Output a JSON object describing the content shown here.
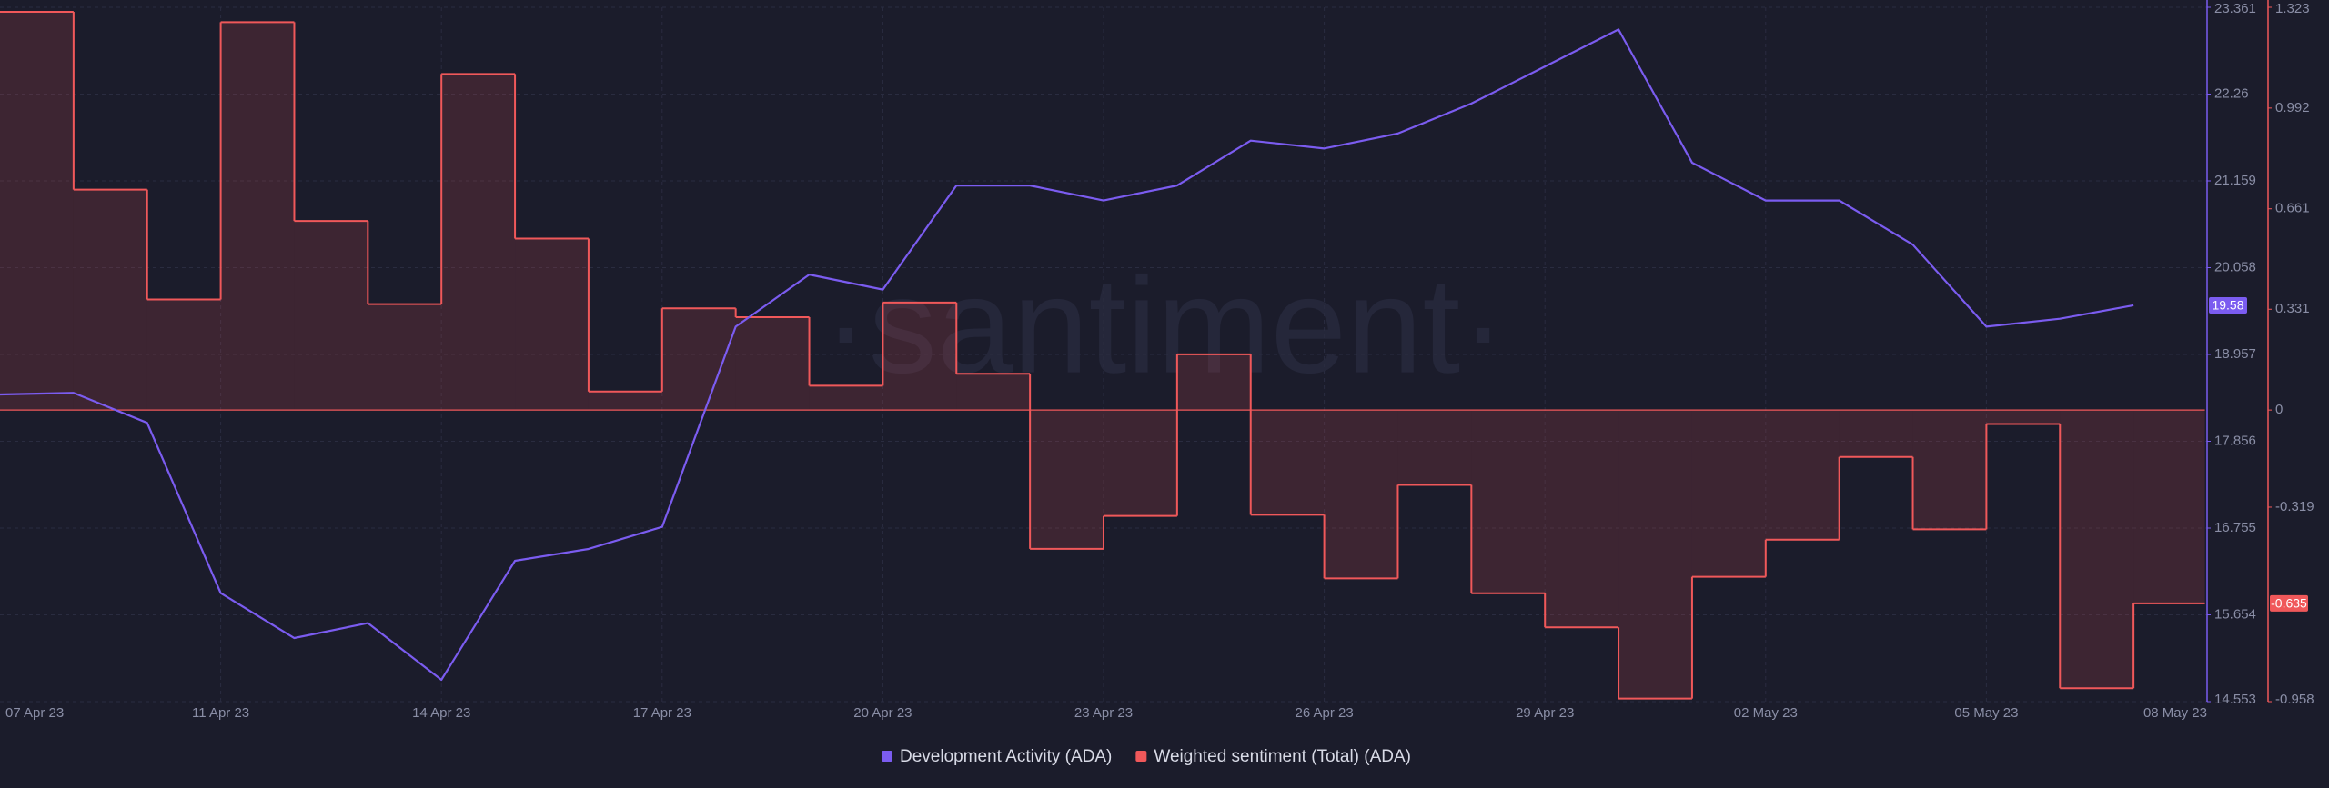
{
  "chart_data": {
    "type": "line",
    "watermark": "·santiment·",
    "x": [
      "2023-04-08",
      "2023-04-09",
      "2023-04-10",
      "2023-04-11",
      "2023-04-12",
      "2023-04-13",
      "2023-04-14",
      "2023-04-15",
      "2023-04-16",
      "2023-04-17",
      "2023-04-18",
      "2023-04-19",
      "2023-04-20",
      "2023-04-21",
      "2023-04-22",
      "2023-04-23",
      "2023-04-24",
      "2023-04-25",
      "2023-04-26",
      "2023-04-27",
      "2023-04-28",
      "2023-04-29",
      "2023-04-30",
      "2023-05-01",
      "2023-05-02",
      "2023-05-03",
      "2023-05-04",
      "2023-05-05",
      "2023-05-06",
      "2023-05-07"
    ],
    "xlim": [
      "2023-04-08",
      "2023-05-08"
    ],
    "xticks": [
      {
        "value": "2023-04-07",
        "label": "07 Apr 23"
      },
      {
        "value": "2023-04-11",
        "label": "11 Apr 23"
      },
      {
        "value": "2023-04-14",
        "label": "14 Apr 23"
      },
      {
        "value": "2023-04-17",
        "label": "17 Apr 23"
      },
      {
        "value": "2023-04-20",
        "label": "20 Apr 23"
      },
      {
        "value": "2023-04-23",
        "label": "23 Apr 23"
      },
      {
        "value": "2023-04-26",
        "label": "26 Apr 23"
      },
      {
        "value": "2023-04-29",
        "label": "29 Apr 23"
      },
      {
        "value": "2023-05-02",
        "label": "02 May 23"
      },
      {
        "value": "2023-05-05",
        "label": "05 May 23"
      },
      {
        "value": "2023-05-08",
        "label": "08 May 23"
      }
    ],
    "series": [
      {
        "name": "Development Activity (ADA)",
        "color": "#7b5cf0",
        "axis": "y",
        "values": [
          18.45,
          18.47,
          18.09,
          15.93,
          15.36,
          15.55,
          14.83,
          16.34,
          16.49,
          16.77,
          19.31,
          19.97,
          19.78,
          21.1,
          21.1,
          20.91,
          21.1,
          21.67,
          21.57,
          21.76,
          22.14,
          22.61,
          23.08,
          21.39,
          20.91,
          20.91,
          20.35,
          19.31,
          19.41,
          19.58
        ]
      },
      {
        "name": "Weighted sentiment (Total) (ADA)",
        "color": "#f0585a",
        "axis": "y2",
        "values": [
          1.308,
          0.724,
          0.363,
          1.274,
          0.621,
          0.348,
          1.104,
          0.563,
          0.061,
          0.334,
          0.305,
          0.08,
          0.353,
          0.119,
          -0.456,
          -0.348,
          0.183,
          -0.344,
          -0.553,
          -0.246,
          -0.602,
          -0.714,
          -0.948,
          -0.548,
          -0.426,
          -0.154,
          -0.392,
          -0.046,
          -0.914,
          -0.635
        ]
      }
    ],
    "ylim": [
      14.553,
      23.361
    ],
    "yticks": [
      23.361,
      22.26,
      21.159,
      20.058,
      18.957,
      17.856,
      16.755,
      15.654,
      14.553
    ],
    "y2lim": [
      -0.958,
      1.323
    ],
    "y2ticks": [
      1.323,
      0.992,
      0.661,
      0.331,
      0,
      -0.319,
      -0.958
    ],
    "grid": true,
    "legend": "bottom"
  }
}
